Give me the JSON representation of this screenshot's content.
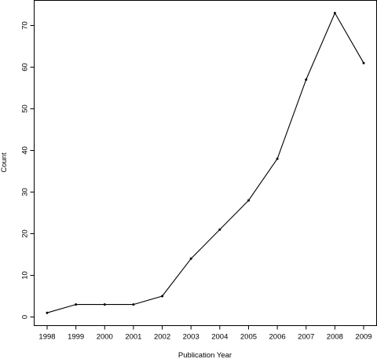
{
  "chart_data": {
    "type": "line",
    "title": "",
    "xlabel": "Publication Year",
    "ylabel": "Count",
    "x": [
      "1998",
      "1999",
      "2000",
      "2001",
      "2002",
      "2003",
      "2004",
      "2005",
      "2006",
      "2007",
      "2008",
      "2009"
    ],
    "series": [
      {
        "values": [
          1,
          3,
          3,
          3,
          5,
          14,
          21,
          28,
          38,
          57,
          73,
          61
        ]
      }
    ],
    "ylim": [
      0,
      75
    ],
    "yticks": [
      "0",
      "10",
      "20",
      "30",
      "40",
      "50",
      "60",
      "70"
    ],
    "grid": false,
    "legend": "none",
    "line_color": "#000000"
  }
}
